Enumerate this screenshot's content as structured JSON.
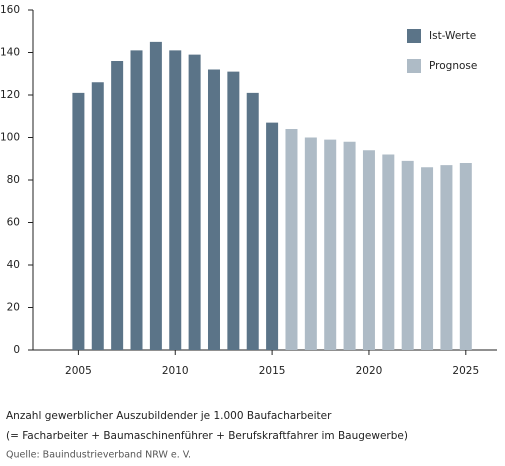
{
  "chart_data": {
    "type": "bar",
    "categories": [
      "2005",
      null,
      null,
      null,
      null,
      "2010",
      null,
      null,
      null,
      null,
      "2015",
      null,
      null,
      null,
      null,
      "2020",
      null,
      null,
      null,
      null,
      "2025"
    ],
    "series": [
      {
        "name": "Ist-Werte",
        "color": "#5b7488",
        "values": [
          121,
          126,
          136,
          141,
          145,
          141,
          139,
          132,
          131,
          121,
          107,
          null,
          null,
          null,
          null,
          null,
          null,
          null,
          null,
          null,
          null
        ]
      },
      {
        "name": "Prognose",
        "color": "#aebbc6",
        "values": [
          null,
          null,
          null,
          null,
          null,
          null,
          null,
          null,
          null,
          null,
          null,
          104,
          100,
          99,
          98,
          94,
          92,
          89,
          86,
          87,
          88
        ]
      }
    ],
    "ylim": [
      0,
      160
    ],
    "yticks": [
      0,
      20,
      40,
      60,
      80,
      100,
      120,
      140,
      160
    ],
    "legend": "top-right",
    "caption": [
      "Anzahl gewerblicher Auszubildender je 1.000 Baufacharbeiter",
      "(= Facharbeiter + Baumaschinenführer + Berufskraftfahrer im Baugewerbe)"
    ],
    "source": "Quelle: Bauindustrieverband NRW e. V."
  }
}
